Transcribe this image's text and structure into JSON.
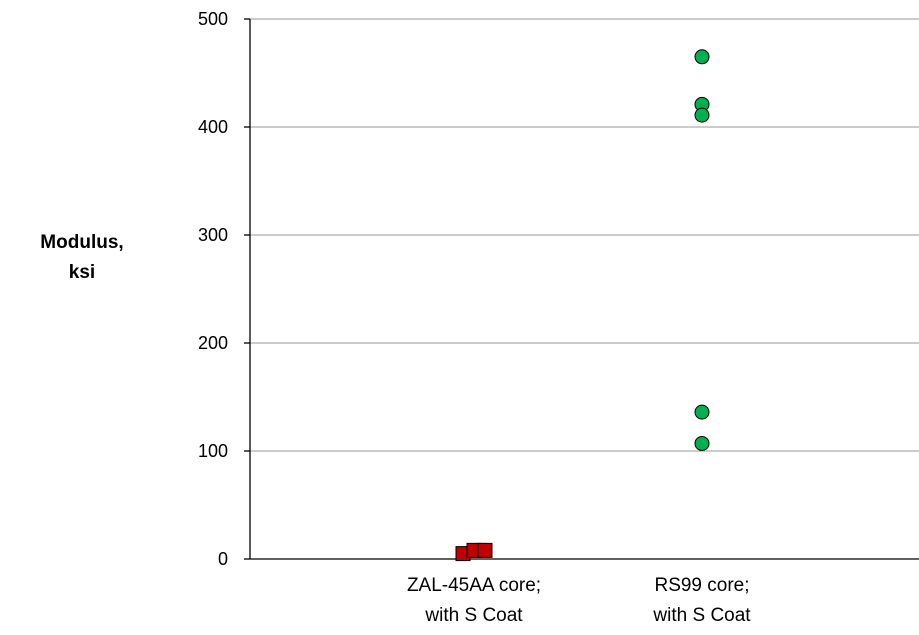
{
  "chart_data": {
    "type": "scatter",
    "title": "",
    "ylabel": [
      "Modulus,",
      "ksi"
    ],
    "ylim": [
      0,
      500
    ],
    "yticks": [
      0,
      100,
      200,
      300,
      400,
      500
    ],
    "grid": true,
    "categories": [
      [
        "ZAL-45AA core;",
        "with S Coat"
      ],
      [
        "RS99 core;",
        "with S Coat"
      ]
    ],
    "series": [
      {
        "category_index": 0,
        "marker": "square",
        "color": "#C00000",
        "points": [
          {
            "offset": -0.04,
            "value": 5
          },
          {
            "offset": 0.0,
            "value": 8
          },
          {
            "offset": 0.04,
            "value": 8
          }
        ]
      },
      {
        "category_index": 1,
        "marker": "circle",
        "color": "#00B050",
        "points": [
          {
            "offset": 0.0,
            "value": 465
          },
          {
            "offset": 0.0,
            "value": 421
          },
          {
            "offset": 0.0,
            "value": 411
          },
          {
            "offset": 0.0,
            "value": 136
          },
          {
            "offset": 0.0,
            "value": 107
          }
        ]
      }
    ]
  }
}
